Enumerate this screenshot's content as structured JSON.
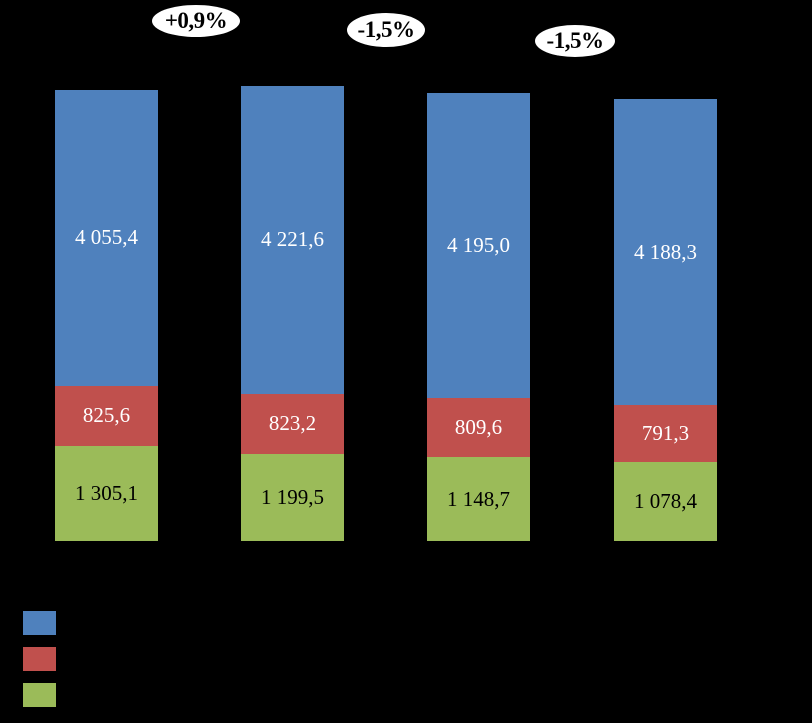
{
  "chart_data": {
    "type": "bar",
    "stacked": true,
    "title": "",
    "xlabel": "",
    "ylabel": "",
    "background_color": "#000000",
    "grid": false,
    "legend_position": "bottom-left",
    "categories": [
      "",
      "",
      "",
      ""
    ],
    "series": [
      {
        "name": "blue-top-segment",
        "color": "#4F81BD",
        "label_color": "#FFFFFF",
        "values": [
          4055.4,
          4221.6,
          4195.0,
          4188.3
        ],
        "value_labels": [
          "4 055,4",
          "4 221,6",
          "4 195,0",
          "4 188,3"
        ]
      },
      {
        "name": "red-middle-segment",
        "color": "#C0504D",
        "label_color": "#FFFFFF",
        "values": [
          825.6,
          823.2,
          809.6,
          791.3
        ],
        "value_labels": [
          "825,6",
          "823,2",
          "809,6",
          "791,3"
        ]
      },
      {
        "name": "green-bottom-segment",
        "color": "#9BBB59",
        "label_color": "#000000",
        "values": [
          1305.1,
          1199.5,
          1148.7,
          1078.4
        ],
        "value_labels": [
          "1 305,1",
          "1 199,5",
          "1 148,7",
          "1 078,4"
        ]
      }
    ],
    "annotations": [
      {
        "label": "+0,9%",
        "between_bars": [
          1,
          2
        ]
      },
      {
        "label": "-1,5%",
        "between_bars": [
          2,
          3
        ]
      },
      {
        "label": "-1,5%",
        "between_bars": [
          3,
          4
        ]
      }
    ],
    "annotation_style": {
      "fill": "#FFFFFF",
      "text_color": "#000000"
    },
    "legend": [
      {
        "series": "blue-top-segment",
        "color": "#4F81BD",
        "label": ""
      },
      {
        "series": "red-middle-segment",
        "color": "#C0504D",
        "label": ""
      },
      {
        "series": "green-bottom-segment",
        "color": "#9BBB59",
        "label": ""
      }
    ]
  }
}
